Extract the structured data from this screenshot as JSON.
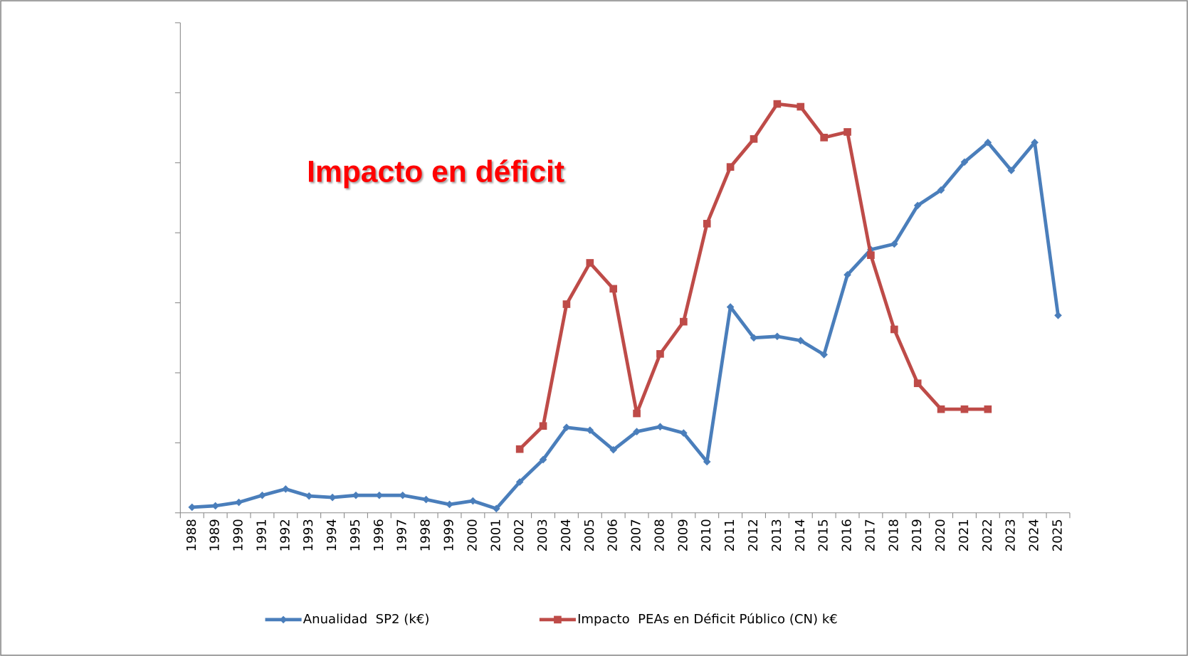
{
  "chart_data": {
    "type": "line",
    "annotation": "Impacto en déficit",
    "categories": [
      "1988",
      "1989",
      "1990",
      "1991",
      "1992",
      "1993",
      "1994",
      "1995",
      "1996",
      "1997",
      "1998",
      "1999",
      "2000",
      "2001",
      "2002",
      "2003",
      "2004",
      "2005",
      "2006",
      "2007",
      "2008",
      "2009",
      "2010",
      "2011",
      "2012",
      "2013",
      "2014",
      "2015",
      "2016",
      "2017",
      "2018",
      "2019",
      "2020",
      "2021",
      "2022",
      "2023",
      "2024",
      "2025"
    ],
    "series": [
      {
        "name": "Anualidad  SP2 (k€)",
        "color": "#4a7ebb",
        "marker": "diamond",
        "values": [
          0.08,
          0.1,
          0.15,
          0.25,
          0.34,
          0.24,
          0.22,
          0.25,
          0.25,
          0.25,
          0.19,
          0.12,
          0.17,
          0.06,
          0.44,
          0.76,
          1.22,
          1.18,
          0.9,
          1.16,
          1.23,
          1.14,
          0.73,
          2.94,
          2.5,
          2.52,
          2.46,
          2.26,
          3.4,
          3.76,
          3.84,
          4.39,
          4.61,
          5.01,
          5.29,
          4.89,
          5.29,
          2.82
        ]
      },
      {
        "name": "Impacto  PEAs en Déficit Público (CN) k€",
        "color": "#be4b48",
        "marker": "square",
        "values": [
          null,
          null,
          null,
          null,
          null,
          null,
          null,
          null,
          null,
          null,
          null,
          null,
          null,
          null,
          0.91,
          1.24,
          2.98,
          3.57,
          3.2,
          1.42,
          2.27,
          2.73,
          4.13,
          4.94,
          5.34,
          5.84,
          5.8,
          5.36,
          5.44,
          3.68,
          2.62,
          1.85,
          1.48,
          1.48,
          1.48,
          null,
          null,
          null
        ]
      }
    ],
    "ylim": [
      0,
      7
    ],
    "yticks": [
      0,
      1,
      2,
      3,
      4,
      5,
      6,
      7
    ],
    "legend": "bottom"
  }
}
